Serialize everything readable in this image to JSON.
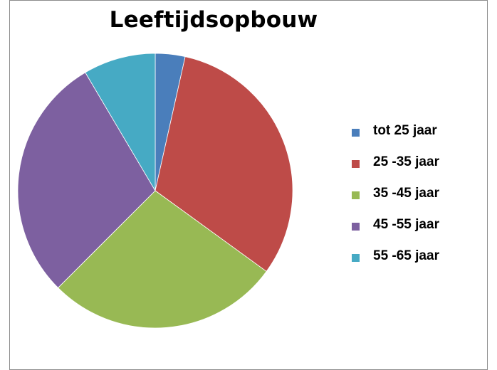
{
  "chart_data": {
    "type": "pie",
    "title": "Leeftijdsopbouw",
    "categories": [
      "tot 25 jaar",
      "25 -35 jaar",
      "35 -45 jaar",
      "45 -55 jaar",
      "55 -65 jaar"
    ],
    "values": [
      3.5,
      31.5,
      27.5,
      29,
      8.5
    ],
    "colors": [
      "#4a7ebb",
      "#be4b48",
      "#98b954",
      "#7d60a0",
      "#46aac4"
    ],
    "legend_position": "right"
  }
}
